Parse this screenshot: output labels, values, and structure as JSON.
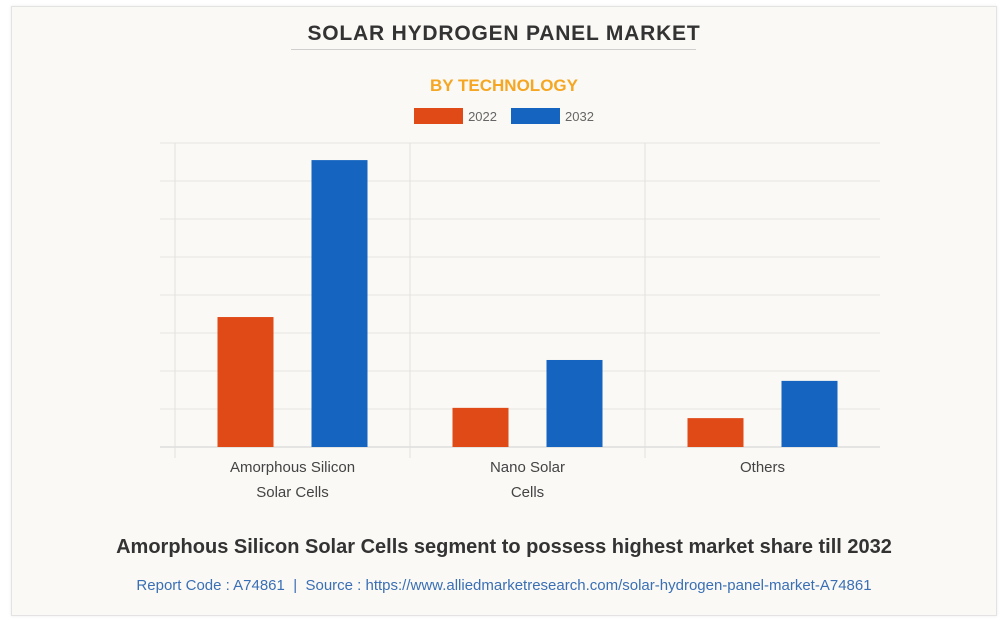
{
  "header": {
    "title": "SOLAR HYDROGEN PANEL MARKET",
    "subtitle": "BY TECHNOLOGY"
  },
  "colors": {
    "series_2022": "#e04a17",
    "series_2032": "#1565c0",
    "subtitle": "#f5a623",
    "source_link": "#3a6fb5"
  },
  "chart_data": {
    "type": "bar",
    "title": "SOLAR HYDROGEN PANEL MARKET",
    "subtitle": "BY TECHNOLOGY",
    "categories": [
      "Amorphous Silicon Solar Cells",
      "Nano Solar Cells",
      "Others"
    ],
    "category_label_lines": [
      [
        "Amorphous Silicon",
        "Solar Cells"
      ],
      [
        "Nano Solar",
        "Cells"
      ],
      [
        "Others"
      ]
    ],
    "series": [
      {
        "name": "2022",
        "color": "#e04a17",
        "values": [
          3.42,
          1.03,
          0.76
        ]
      },
      {
        "name": "2032",
        "color": "#1565c0",
        "values": [
          7.55,
          2.29,
          1.74
        ]
      }
    ],
    "xlabel": "",
    "ylabel": "",
    "ylim": [
      0,
      8
    ],
    "y_gridlines": 8,
    "y_tick_labels_shown": false,
    "grid": true,
    "legend": "top-center",
    "units_note": "relative units (gridline steps); axis values not labeled"
  },
  "footer": {
    "headline": "Amorphous Silicon Solar Cells segment to possess highest market share till 2032",
    "report_code_label": "Report Code : A74861",
    "separator": "|",
    "source_label": "Source : https://www.alliedmarketresearch.com/solar-hydrogen-panel-market-A74861"
  }
}
